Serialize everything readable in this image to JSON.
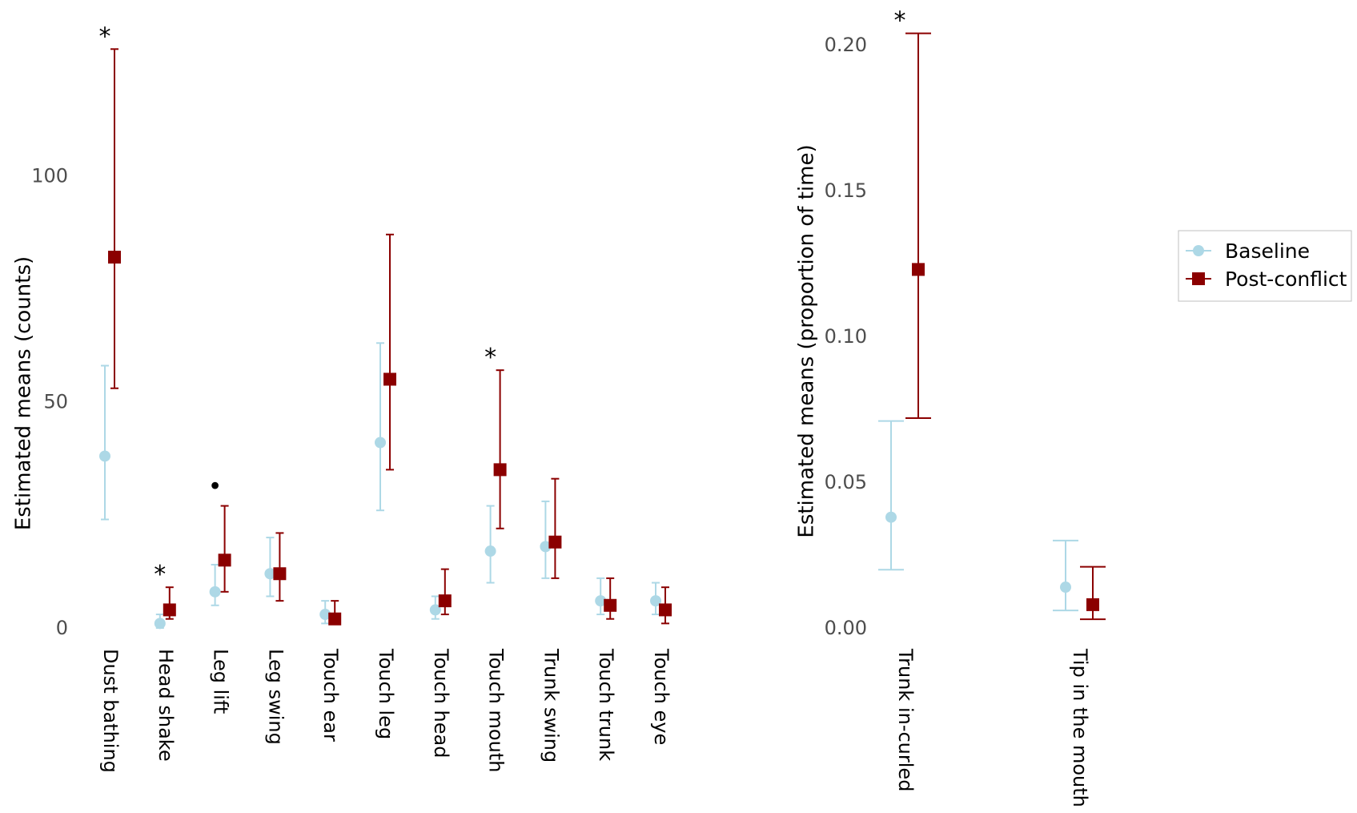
{
  "chart_data": [
    {
      "type": "scatter",
      "subtype": "point-with-error-bars",
      "ylabel": "Estimated means (counts)",
      "ylim": [
        0,
        130
      ],
      "yticks": [
        0,
        50,
        100
      ],
      "ytick_labels": [
        "0",
        "50",
        "100"
      ],
      "categories": [
        "Dust bathing",
        "Head shake",
        "Leg lift",
        "Leg swing",
        "Touch ear",
        "Touch leg",
        "Touch head",
        "Touch mouth",
        "Trunk swing",
        "Touch trunk",
        "Touch eye"
      ],
      "series": [
        {
          "name": "Baseline",
          "color": "#add8e6",
          "marker": "circle",
          "values": [
            38,
            1,
            8,
            12,
            3,
            41,
            4,
            17,
            18,
            6,
            6
          ],
          "lower": [
            24,
            0,
            5,
            7,
            1,
            26,
            2,
            10,
            11,
            3,
            3
          ],
          "upper": [
            58,
            3,
            14,
            20,
            6,
            63,
            7,
            27,
            28,
            11,
            10
          ]
        },
        {
          "name": "Post-conflict",
          "color": "#8b0000",
          "marker": "square",
          "values": [
            82,
            4,
            15,
            12,
            2,
            55,
            6,
            35,
            19,
            5,
            4
          ],
          "lower": [
            53,
            2,
            8,
            6,
            1,
            35,
            3,
            22,
            11,
            2,
            1
          ],
          "upper": [
            128,
            9,
            27,
            21,
            6,
            87,
            13,
            57,
            33,
            11,
            9
          ]
        }
      ],
      "annotations": [
        {
          "category": "Dust bathing",
          "text": "*"
        },
        {
          "category": "Head shake",
          "text": "*"
        },
        {
          "category": "Leg lift",
          "text": "•"
        },
        {
          "category": "Touch mouth",
          "text": "*"
        }
      ]
    },
    {
      "type": "scatter",
      "subtype": "point-with-error-bars",
      "ylabel": "Estimated means (proportion of time)",
      "ylim": [
        0,
        0.205
      ],
      "yticks": [
        0,
        0.05,
        0.1,
        0.15,
        0.2
      ],
      "ytick_labels": [
        "0.00",
        "0.05",
        "0.10",
        "0.15",
        "0.20"
      ],
      "categories": [
        "Trunk in-curled",
        "Tip in the mouth"
      ],
      "series": [
        {
          "name": "Baseline",
          "color": "#add8e6",
          "marker": "circle",
          "values": [
            0.038,
            0.014
          ],
          "lower": [
            0.02,
            0.006
          ],
          "upper": [
            0.071,
            0.03
          ]
        },
        {
          "name": "Post-conflict",
          "color": "#8b0000",
          "marker": "square",
          "values": [
            0.123,
            0.008
          ],
          "lower": [
            0.072,
            0.003
          ],
          "upper": [
            0.204,
            0.021
          ]
        }
      ],
      "annotations": [
        {
          "category": "Trunk in-curled",
          "text": "*"
        }
      ]
    }
  ],
  "legend": {
    "position": "right",
    "items": [
      {
        "label": "Baseline",
        "color": "#add8e6",
        "marker": "circle"
      },
      {
        "label": "Post-conflict",
        "color": "#8b0000",
        "marker": "square"
      }
    ]
  }
}
